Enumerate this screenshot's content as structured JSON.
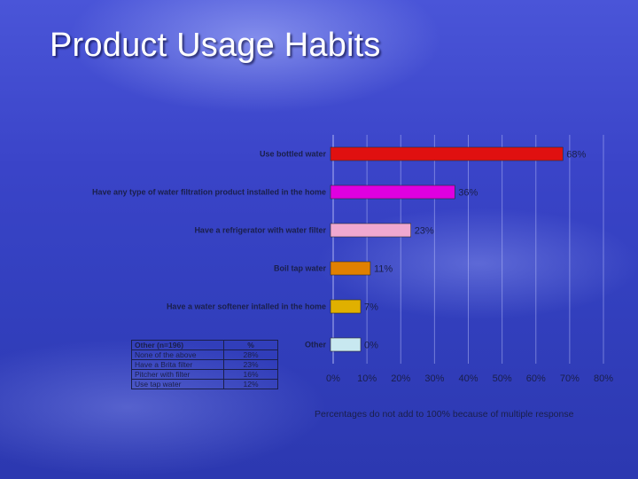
{
  "slide": {
    "title": "Product Usage Habits",
    "footnote": "Percentages do not add to 100% because of multiple response"
  },
  "chart_data": {
    "type": "bar",
    "orientation": "horizontal",
    "categories": [
      "Use bottled water",
      "Have any type of water filtration product installed in the home",
      "Have a refrigerator with water filter",
      "Boil tap water",
      "Have a water softener intalled in the home",
      "Other"
    ],
    "values": [
      68,
      36,
      23,
      11,
      7,
      0
    ],
    "value_labels": [
      "68%",
      "36%",
      "23%",
      "11%",
      "7%",
      "0%"
    ],
    "bar_colors": [
      "#e01010",
      "#e000e0",
      "#f0a8d0",
      "#e08000",
      "#e0b000",
      "#c8e8f0"
    ],
    "xlim": [
      0,
      80
    ],
    "xticks": [
      "0%",
      "10%",
      "20%",
      "30%",
      "40%",
      "50%",
      "60%",
      "70%",
      "80%"
    ],
    "grid": "vertical",
    "legend": "none"
  },
  "other_table": {
    "header": {
      "label": "Other (n=196)",
      "pct": "%"
    },
    "rows": [
      {
        "label": "None of the above",
        "pct": "28%"
      },
      {
        "label": "Have a Brita filter",
        "pct": "23%"
      },
      {
        "label": "Pitcher with filter",
        "pct": "16%"
      },
      {
        "label": "Use tap water",
        "pct": "12%"
      }
    ]
  }
}
